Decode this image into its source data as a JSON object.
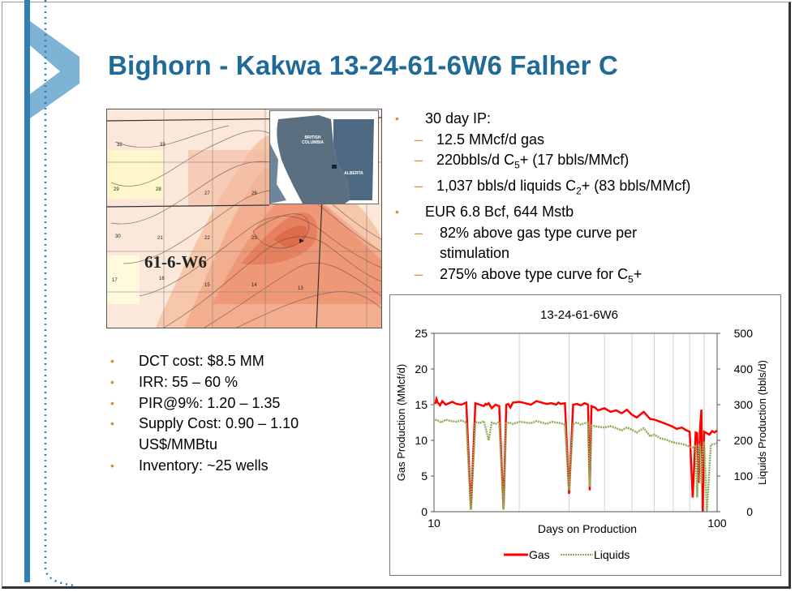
{
  "slide": {
    "title": "Bighorn - Kakwa 13-24-61-6W6 Falher C"
  },
  "map": {
    "township_label": "61-6-W6",
    "inset_labels": {
      "bc": "BRITISH\nCOLUMBIA",
      "ab": "ALBERTA"
    },
    "section_numbers": [
      "33",
      "32",
      "27",
      "28",
      "29",
      "26",
      "30",
      "23",
      "22",
      "21",
      "17",
      "16",
      "15",
      "14",
      "13"
    ]
  },
  "right_bullets": [
    {
      "kind": "bullet",
      "parts": [
        "30 day IP:"
      ]
    },
    {
      "kind": "dash",
      "parts": [
        "12.5 MMcf/d gas"
      ]
    },
    {
      "kind": "dash",
      "parts": [
        "220bbls/d C",
        "5",
        "+ (17 bbls/MMcf)"
      ]
    },
    {
      "kind": "dash",
      "parts": [
        "1,037 bbls/d liquids C",
        "2",
        "+ (83 bbls/MMcf)"
      ]
    },
    {
      "kind": "bullet",
      "parts": [
        "EUR 6.8 Bcf, 644 Mstb"
      ]
    },
    {
      "kind": "dash",
      "parts": [
        "82% above gas type curve per"
      ]
    },
    {
      "kind": "cont",
      "parts": [
        "stimulation"
      ]
    },
    {
      "kind": "dash",
      "parts": [
        "275% above type curve for C",
        "5",
        "+"
      ]
    }
  ],
  "left_bullets": [
    {
      "kind": "bullet",
      "text": "DCT cost: $8.5 MM"
    },
    {
      "kind": "bullet",
      "text": "IRR:  55 – 60 %"
    },
    {
      "kind": "bullet",
      "text": "PIR@9%: 1.20 – 1.35"
    },
    {
      "kind": "bullet",
      "text": "Supply Cost: 0.90 – 1.10"
    },
    {
      "kind": "cont",
      "text": "US$/MMBtu"
    },
    {
      "kind": "bullet",
      "text": "Inventory: ~25 wells"
    }
  ],
  "colors": {
    "title": "#1f6a96",
    "bullet": "#d98b3a",
    "gas": "#ff0000",
    "liquids": "#8fae5a",
    "accent_bar": "#2f7fb0"
  },
  "chart_data": {
    "type": "line",
    "title": "13-24-61-6W6",
    "xlabel": "Days on Production",
    "ylabel": "Gas Production (MMcf/d)",
    "y2label": "Liquids Production (bbls/d)",
    "x_scale": "log",
    "xlim": [
      10,
      100
    ],
    "ylim": [
      0,
      25
    ],
    "y2lim": [
      0,
      500
    ],
    "x_ticks": [
      "10",
      "100"
    ],
    "y_ticks": [
      "0",
      "5",
      "10",
      "15",
      "20",
      "25"
    ],
    "y2_ticks": [
      "0",
      "100",
      "200",
      "300",
      "400",
      "500"
    ],
    "legend": [
      "Gas",
      "Liquids"
    ],
    "legend_position": "bottom",
    "grid": true,
    "series": [
      {
        "name": "Gas",
        "axis": "left",
        "color": "#ff0000",
        "x": [
          10.1,
          10.2,
          10.3,
          10.5,
          10.7,
          11,
          11.3,
          11.6,
          12,
          12.5,
          13,
          13.5,
          14,
          14.5,
          15,
          15.2,
          15.4,
          15.6,
          16,
          16.5,
          17,
          17.6,
          18,
          18.3,
          18.6,
          19,
          20,
          21,
          22,
          23,
          24,
          25,
          26,
          27,
          27.5,
          28,
          29,
          30,
          31,
          32,
          33,
          34,
          35,
          35.5,
          36,
          37,
          38,
          40,
          42,
          44,
          46,
          48,
          50,
          52,
          55,
          58,
          60,
          63,
          66,
          69,
          72,
          75,
          78,
          80,
          82,
          84,
          85,
          86,
          87,
          88,
          89,
          90,
          92,
          94,
          96,
          98,
          100
        ],
        "y": [
          15.1,
          15.8,
          15.3,
          14.9,
          15.5,
          15.0,
          15.2,
          15.4,
          15.1,
          15.0,
          15.3,
          0.3,
          15.2,
          15.0,
          14.8,
          15.1,
          15.0,
          15.2,
          14.5,
          15.0,
          14.8,
          0.3,
          15.0,
          15.1,
          14.6,
          15.3,
          15.4,
          15.2,
          15.0,
          15.5,
          15.3,
          15.1,
          15.2,
          15.0,
          15.3,
          15.1,
          15.2,
          2.5,
          15.0,
          15.1,
          14.9,
          15.2,
          15.0,
          3.0,
          14.8,
          14.6,
          14.2,
          14.5,
          14.0,
          14.2,
          13.8,
          14.3,
          13.6,
          13.2,
          14.0,
          13.0,
          12.9,
          12.6,
          12.3,
          12.0,
          11.6,
          11.8,
          11.4,
          11.2,
          2.0,
          11.1,
          11.0,
          4.0,
          11.5,
          14.3,
          0.0,
          11.2,
          11.0,
          10.8,
          11.3,
          11.1,
          11.4
        ]
      },
      {
        "name": "Liquids",
        "axis": "right",
        "color": "#8fae5a",
        "x": [
          10.1,
          10.3,
          10.6,
          11,
          11.5,
          12,
          12.5,
          13,
          13.5,
          14,
          14.5,
          15,
          15.6,
          16,
          16.5,
          17,
          17.6,
          18,
          18.5,
          19,
          20,
          21,
          22,
          23,
          24,
          25,
          26,
          27,
          28,
          29,
          30,
          31,
          32,
          33,
          34,
          35,
          35.5,
          36,
          38,
          40,
          42,
          44,
          46,
          48,
          50,
          52,
          55,
          58,
          60,
          63,
          66,
          69,
          72,
          75,
          78,
          80,
          82,
          84,
          85,
          86,
          87,
          88,
          89,
          90,
          92,
          95,
          98,
          100
        ],
        "y": [
          258,
          256,
          250,
          258,
          254,
          252,
          256,
          250,
          5,
          252,
          248,
          254,
          200,
          250,
          246,
          252,
          6,
          248,
          250,
          246,
          252,
          250,
          248,
          254,
          250,
          246,
          252,
          250,
          248,
          244,
          60,
          246,
          250,
          244,
          248,
          250,
          70,
          242,
          238,
          236,
          240,
          234,
          228,
          236,
          230,
          222,
          234,
          212,
          216,
          206,
          202,
          196,
          192,
          190,
          186,
          182,
          180,
          186,
          40,
          190,
          175,
          80,
          182,
          196,
          0,
          188,
          190,
          192
        ]
      }
    ]
  }
}
